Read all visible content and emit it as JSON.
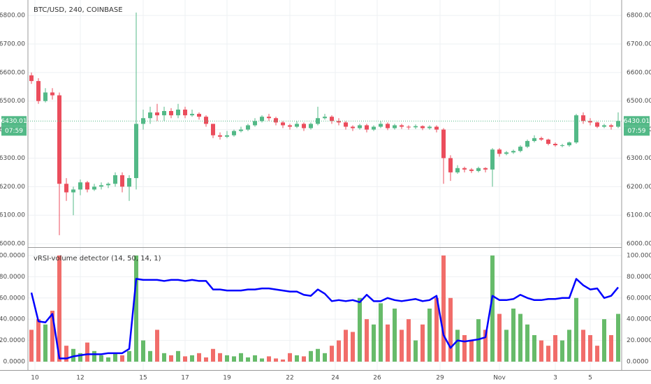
{
  "chart_data": [
    {
      "type": "candlestick",
      "title": "BTC/USD, 240, COINBASE",
      "open": [
        6590,
        6570,
        6500,
        6530,
        6520,
        6210,
        6180,
        6190,
        6215,
        6190,
        6200,
        6205,
        6210,
        6240,
        6200,
        6230,
        6420,
        6440,
        6460,
        6450,
        6465,
        6450,
        6470,
        6450,
        6455,
        6445,
        6420,
        6380,
        6375,
        6380,
        6395,
        6400,
        6415,
        6430,
        6445,
        6440,
        6425,
        6415,
        6410,
        6420,
        6405,
        6420,
        6440,
        6445,
        6430,
        6425,
        6410,
        6405,
        6415,
        6400,
        6410,
        6420,
        6405,
        6415,
        6410,
        6408,
        6412,
        6405,
        6410,
        6400,
        6300,
        6250,
        6265,
        6260,
        6255,
        6265,
        6260,
        6330,
        6315,
        6320,
        6325,
        6340,
        6360,
        6370,
        6365,
        6350,
        6345,
        6345,
        6355,
        6450,
        6430,
        6425,
        6410,
        6415,
        6410
      ],
      "high": [
        6600,
        6580,
        6545,
        6545,
        6530,
        6230,
        6200,
        6225,
        6220,
        6210,
        6215,
        6215,
        6250,
        6250,
        6240,
        6810,
        6470,
        6480,
        6490,
        6480,
        6475,
        6490,
        6480,
        6470,
        6460,
        6450,
        6420,
        6390,
        6395,
        6400,
        6410,
        6420,
        6440,
        6450,
        6455,
        6445,
        6430,
        6420,
        6430,
        6425,
        6425,
        6480,
        6455,
        6450,
        6440,
        6430,
        6415,
        6420,
        6420,
        6415,
        6430,
        6425,
        6420,
        6420,
        6415,
        6418,
        6415,
        6415,
        6415,
        6405,
        6310,
        6275,
        6270,
        6265,
        6270,
        6268,
        6335,
        6335,
        6325,
        6330,
        6345,
        6365,
        6380,
        6375,
        6368,
        6355,
        6350,
        6358,
        6455,
        6460,
        6440,
        6428,
        6420,
        6420,
        6460
      ],
      "low": [
        6560,
        6490,
        6495,
        6505,
        6030,
        6150,
        6100,
        6170,
        6180,
        6185,
        6190,
        6195,
        6200,
        6180,
        6150,
        6190,
        6400,
        6420,
        6430,
        6430,
        6440,
        6440,
        6440,
        6445,
        6435,
        6410,
        6370,
        6365,
        6370,
        6375,
        6390,
        6395,
        6410,
        6425,
        6430,
        6415,
        6405,
        6400,
        6405,
        6395,
        6400,
        6415,
        6435,
        6420,
        6415,
        6400,
        6395,
        6400,
        6390,
        6395,
        6405,
        6398,
        6400,
        6402,
        6400,
        6402,
        6398,
        6400,
        6390,
        6210,
        6220,
        6245,
        6250,
        6248,
        6250,
        6250,
        6200,
        6305,
        6310,
        6315,
        6320,
        6335,
        6355,
        6360,
        6345,
        6340,
        6338,
        6340,
        6350,
        6420,
        6415,
        6405,
        6405,
        6400,
        6405
      ],
      "close": [
        6570,
        6500,
        6530,
        6520,
        6210,
        6180,
        6190,
        6215,
        6190,
        6200,
        6205,
        6210,
        6240,
        6200,
        6230,
        6420,
        6440,
        6460,
        6450,
        6465,
        6450,
        6470,
        6450,
        6455,
        6445,
        6420,
        6380,
        6375,
        6380,
        6395,
        6400,
        6415,
        6430,
        6445,
        6440,
        6425,
        6415,
        6410,
        6420,
        6405,
        6420,
        6440,
        6445,
        6430,
        6425,
        6410,
        6405,
        6415,
        6400,
        6410,
        6420,
        6405,
        6415,
        6410,
        6408,
        6412,
        6405,
        6410,
        6400,
        6300,
        6250,
        6265,
        6260,
        6255,
        6265,
        6260,
        6330,
        6315,
        6320,
        6325,
        6340,
        6360,
        6370,
        6365,
        6350,
        6345,
        6345,
        6355,
        6450,
        6430,
        6425,
        6410,
        6415,
        6410,
        6430.01
      ],
      "up_color": "#53b987",
      "down_color": "#eb4d5c",
      "xlim": [
        -0.5,
        84.5
      ],
      "ylim": [
        5988,
        6854
      ],
      "yticks": [
        {
          "value": 6000,
          "label": "6000.00"
        },
        {
          "value": 6100,
          "label": "6100.00"
        },
        {
          "value": 6200,
          "label": "6200.00"
        },
        {
          "value": 6300,
          "label": "6300.00"
        },
        {
          "value": 6400,
          "label": "6400.00"
        },
        {
          "value": 6500,
          "label": "6500.00"
        },
        {
          "value": 6600,
          "label": "6600.00"
        },
        {
          "value": 6700,
          "label": "6700.00"
        },
        {
          "value": 6800,
          "label": "6800.00"
        }
      ],
      "last_price": 6430.01,
      "countdown": "07:59",
      "grid": true
    },
    {
      "type": "volume-line",
      "title": "vRSI-volume detector (14, 50, 14, 1)",
      "bar_values": [
        30,
        40,
        35,
        48,
        100,
        15,
        12,
        8,
        18,
        10,
        6,
        4,
        8,
        6,
        10,
        100,
        20,
        10,
        30,
        8,
        6,
        10,
        5,
        6,
        8,
        4,
        12,
        8,
        6,
        5,
        8,
        4,
        6,
        3,
        5,
        3,
        2,
        8,
        6,
        5,
        10,
        12,
        8,
        15,
        20,
        30,
        28,
        60,
        40,
        35,
        55,
        35,
        50,
        30,
        40,
        20,
        35,
        50,
        60,
        100,
        60,
        30,
        25,
        20,
        40,
        30,
        100,
        45,
        30,
        50,
        45,
        35,
        25,
        20,
        15,
        25,
        20,
        30,
        60,
        30,
        25,
        15,
        40,
        25,
        45
      ],
      "bar_up_color": "#4caf50",
      "bar_down_color": "#ef5350",
      "line_values": [
        65,
        38,
        37,
        45,
        3,
        3,
        5,
        6,
        7,
        7,
        7,
        8,
        8,
        8,
        12,
        78,
        77,
        77,
        77,
        76,
        77,
        77,
        76,
        77,
        76,
        76,
        68,
        68,
        67,
        67,
        67,
        68,
        68,
        69,
        69,
        68,
        67,
        66,
        66,
        63,
        62,
        68,
        64,
        57,
        58,
        57,
        58,
        56,
        63,
        57,
        57,
        60,
        58,
        57,
        58,
        59,
        57,
        58,
        62,
        25,
        13,
        20,
        19,
        20,
        21,
        23,
        62,
        58,
        58,
        59,
        63,
        60,
        58,
        58,
        59,
        59,
        60,
        60,
        78,
        72,
        68,
        69,
        60,
        62,
        70
      ],
      "line_color": "#0000ff",
      "xlim": [
        -0.5,
        84.5
      ],
      "ylim": [
        -7.9,
        107.2
      ],
      "yticks": [
        {
          "value": 0,
          "label": "0.0000"
        },
        {
          "value": 20,
          "label": "20.0000"
        },
        {
          "value": 40,
          "label": "40.0000"
        },
        {
          "value": 60,
          "label": "60.0000"
        },
        {
          "value": 80,
          "label": "80.0000"
        },
        {
          "value": 100,
          "label": "100.0000"
        }
      ],
      "xticks": [
        {
          "value": 0.5,
          "label": "10"
        },
        {
          "value": 7,
          "label": "12"
        },
        {
          "value": 16,
          "label": "15"
        },
        {
          "value": 22,
          "label": "17"
        },
        {
          "value": 28,
          "label": "19"
        },
        {
          "value": 37,
          "label": "22"
        },
        {
          "value": 43.5,
          "label": "24"
        },
        {
          "value": 49.5,
          "label": "26"
        },
        {
          "value": 58.5,
          "label": "29"
        },
        {
          "value": 67,
          "label": "Nov"
        },
        {
          "value": 75,
          "label": "3"
        },
        {
          "value": 80,
          "label": "5"
        }
      ],
      "grid": true
    }
  ]
}
